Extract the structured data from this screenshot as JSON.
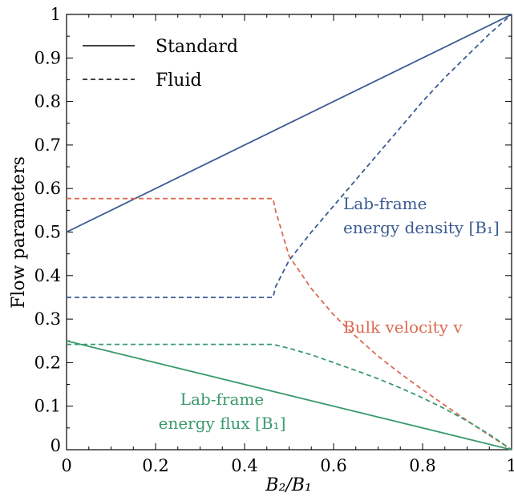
{
  "chart_data": {
    "type": "line",
    "title": "",
    "xlabel": "B₂/B₁",
    "ylabel": "Flow parameters",
    "xlim": [
      0,
      1
    ],
    "ylim": [
      0,
      1
    ],
    "x_ticks": [
      "0",
      "0.2",
      "0.4",
      "0.6",
      "0.8",
      "1"
    ],
    "y_ticks": [
      "0",
      "0.1",
      "0.2",
      "0.3",
      "0.4",
      "0.5",
      "0.6",
      "0.7",
      "0.8",
      "0.9",
      "1"
    ],
    "grid": false,
    "legend": {
      "placement": "top-left",
      "entries": [
        {
          "label": "Standard",
          "linestyle": "solid"
        },
        {
          "label": "Fluid",
          "linestyle": "dashed"
        }
      ]
    },
    "colors": {
      "energy_density": "#3b5b92",
      "bulk_velocity": "#dc6a52",
      "energy_flux": "#3a9a6c"
    },
    "annotations": [
      {
        "lines": [
          "Lab-frame",
          "energy density [B₁]"
        ],
        "color_key": "energy_density"
      },
      {
        "lines": [
          "Bulk velocity v"
        ],
        "color_key": "bulk_velocity"
      },
      {
        "lines": [
          "Lab-frame",
          "energy flux [B₁]"
        ],
        "color_key": "energy_flux"
      }
    ],
    "series": [
      {
        "quantity": "energy_density",
        "style": "solid",
        "x": [
          0,
          1
        ],
        "y": [
          0.5,
          1
        ]
      },
      {
        "quantity": "energy_flux",
        "style": "solid",
        "x": [
          0,
          1
        ],
        "y": [
          0.25,
          0
        ]
      },
      {
        "quantity": "bulk_velocity",
        "style": "dashed",
        "x": [
          0,
          0.1,
          0.2,
          0.3,
          0.4,
          0.464,
          0.47,
          0.5,
          0.55,
          0.6,
          0.65,
          0.7,
          0.75,
          0.8,
          0.85,
          0.9,
          0.95,
          1.0
        ],
        "y": [
          0.577,
          0.577,
          0.577,
          0.577,
          0.577,
          0.577,
          0.548,
          0.445,
          0.37,
          0.31,
          0.26,
          0.215,
          0.175,
          0.138,
          0.102,
          0.067,
          0.033,
          0
        ]
      },
      {
        "quantity": "energy_density",
        "style": "dashed",
        "x": [
          0,
          0.1,
          0.2,
          0.3,
          0.4,
          0.464,
          0.47,
          0.5,
          0.55,
          0.6,
          0.65,
          0.7,
          0.75,
          0.8,
          0.85,
          0.9,
          0.95,
          1.0
        ],
        "y": [
          0.35,
          0.35,
          0.35,
          0.35,
          0.35,
          0.35,
          0.375,
          0.435,
          0.5,
          0.56,
          0.62,
          0.68,
          0.74,
          0.8,
          0.855,
          0.905,
          0.955,
          1.0
        ]
      },
      {
        "quantity": "energy_flux",
        "style": "dashed",
        "x": [
          0,
          0.1,
          0.2,
          0.3,
          0.4,
          0.464,
          0.5,
          0.55,
          0.6,
          0.65,
          0.7,
          0.75,
          0.8,
          0.85,
          0.9,
          0.95,
          1.0
        ],
        "y": [
          0.242,
          0.242,
          0.242,
          0.242,
          0.242,
          0.242,
          0.233,
          0.218,
          0.2,
          0.182,
          0.163,
          0.142,
          0.119,
          0.094,
          0.066,
          0.035,
          0
        ]
      }
    ]
  }
}
